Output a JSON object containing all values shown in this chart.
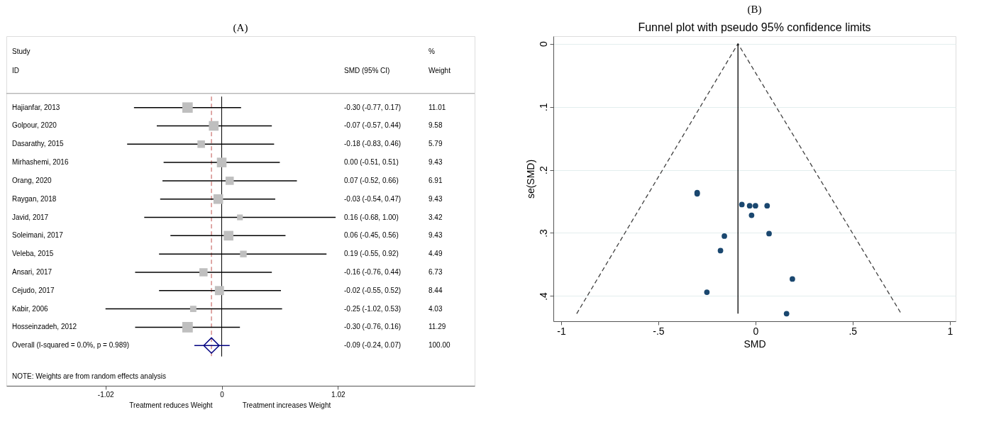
{
  "chart_data": [
    {
      "type": "scatter",
      "orientation": "horizontal",
      "title": "(A)",
      "categories": [
        "Hajianfar, 2013",
        "Golpour, 2020",
        "Dasarathy, 2015",
        "Mirhashemi, 2016",
        "Orang, 2020",
        "Raygan, 2018",
        "Javid, 2017",
        "Soleimani, 2017",
        "Veleba, 2015",
        "Ansari, 2017",
        "Cejudo, 2017",
        "Kabir, 2006",
        "Hosseinzadeh, 2012",
        "Overall  (I-squared = 0.0%, p = 0.989)"
      ],
      "series": [
        {
          "color": "#bfbfbf",
          "marker": "square",
          "values": [
            -0.3,
            -0.07,
            -0.18,
            0.0,
            0.07,
            -0.03,
            0.16,
            0.06,
            0.19,
            -0.16,
            -0.02,
            -0.25,
            -0.3,
            null
          ],
          "errors": [
            [
              -0.77,
              0.17
            ],
            [
              -0.57,
              0.44
            ],
            [
              -0.83,
              0.46
            ],
            [
              -0.51,
              0.51
            ],
            [
              -0.52,
              0.66
            ],
            [
              -0.54,
              0.47
            ],
            [
              -0.68,
              1.0
            ],
            [
              -0.45,
              0.56
            ],
            [
              -0.55,
              0.92
            ],
            [
              -0.76,
              0.44
            ],
            [
              -0.55,
              0.52
            ],
            [
              -1.02,
              0.53
            ],
            [
              -0.76,
              0.16
            ],
            null
          ],
          "sizes": [
            0.98,
            0.85,
            0.51,
            0.84,
            0.61,
            0.84,
            0.3,
            0.84,
            0.4,
            0.6,
            0.75,
            0.36,
            1,
            null
          ]
        },
        {
          "color": "#000080",
          "marker": "diamond",
          "values": [
            null,
            null,
            null,
            null,
            null,
            null,
            null,
            null,
            null,
            null,
            null,
            null,
            null,
            -0.09
          ],
          "errors": [
            null,
            null,
            null,
            null,
            null,
            null,
            null,
            null,
            null,
            null,
            null,
            null,
            null,
            [
              -0.24,
              0.07
            ]
          ]
        }
      ],
      "xlim": [
        -1.89,
        2.22
      ],
      "grid": false,
      "xticks": [
        -1.02,
        0,
        1.02
      ],
      "ref_lines": [
        {
          "axis": "x",
          "value": 0,
          "color": "#000000",
          "line_style": "solid"
        },
        {
          "axis": "x",
          "value": -0.09,
          "color": "#c0504d",
          "line_style": "dashed"
        }
      ],
      "annotations": [
        "Study",
        "ID",
        "SMD (95% CI)",
        "%",
        "Weight",
        "NOTE: Weights are from random effects analysis",
        "Treatment reduces Weight",
        "Treatment increases Weight",
        "-0.30 (-0.77, 0.17)",
        "-0.07 (-0.57, 0.44)",
        "-0.18 (-0.83, 0.46)",
        "0.00 (-0.51, 0.51)",
        "0.07 (-0.52, 0.66)",
        "-0.03 (-0.54, 0.47)",
        "0.16 (-0.68, 1.00)",
        "0.06 (-0.45, 0.56)",
        "0.19 (-0.55, 0.92)",
        "-0.16 (-0.76, 0.44)",
        "-0.02 (-0.55, 0.52)",
        "-0.25 (-1.02, 0.53)",
        "-0.30 (-0.76, 0.16)",
        "-0.09 (-0.24, 0.07)",
        "11.01",
        "9.58",
        "5.79",
        "9.43",
        "6.91",
        "9.43",
        "3.42",
        "9.43",
        "4.49",
        "6.73",
        "8.44",
        "4.03",
        "11.29",
        "100.00"
      ]
    },
    {
      "type": "scatter",
      "title": "(B)",
      "subtitle": "Funnel plot with pseudo 95% confidence limits",
      "xlabel": "SMD",
      "ylabel": "se(SMD)",
      "series": [
        {
          "color": "#1a476f",
          "marker": "circle",
          "x": [
            -0.3,
            -0.3,
            -0.07,
            -0.03,
            0.0,
            0.06,
            -0.02,
            0.07,
            -0.16,
            -0.18,
            0.19,
            -0.25,
            0.16
          ],
          "values": [
            0.236,
            0.238,
            0.255,
            0.257,
            0.257,
            0.257,
            0.272,
            0.301,
            0.305,
            0.328,
            0.373,
            0.394,
            0.428
          ]
        },
        {
          "type": "line",
          "color": "#404040",
          "line_style": "dashed",
          "x": [
            -0.92,
            -0.09,
            0.75
          ],
          "values": [
            0.428,
            0,
            0.428
          ]
        },
        {
          "type": "line",
          "color": "#000000",
          "line_style": "solid",
          "x": [
            -0.09,
            -0.09
          ],
          "values": [
            0,
            0.428
          ]
        }
      ],
      "xlim": [
        -1.04,
        1.03
      ],
      "ylim": [
        0.44,
        -0.012
      ],
      "xticks": [
        -1,
        {
          "value": -0.5,
          "label": "-.5"
        },
        0,
        {
          "value": 0.5,
          "label": ".5"
        },
        1
      ],
      "yticks": [
        0,
        {
          "value": 0.1,
          "label": ".1"
        },
        {
          "value": 0.2,
          "label": ".2"
        },
        {
          "value": 0.3,
          "label": ".3"
        },
        {
          "value": 0.4,
          "label": ".4"
        }
      ],
      "grid": "y"
    }
  ]
}
